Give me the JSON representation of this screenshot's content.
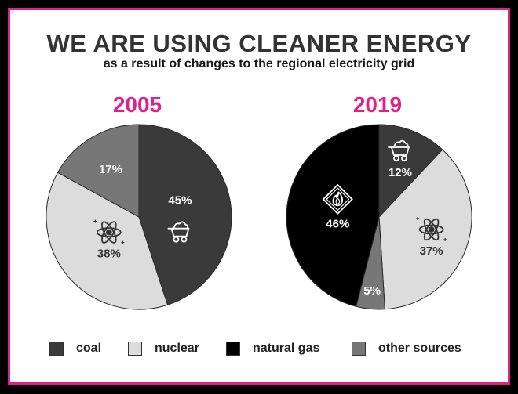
{
  "header": {
    "title": "WE ARE USING CLEANER ENERGY",
    "subtitle": "as a result of changes to the regional electricity grid"
  },
  "colors": {
    "coal": "#3a3a3a",
    "nuclear": "#dcdcdc",
    "natural_gas": "#000000",
    "other_sources": "#777777",
    "accent": "#e0218a"
  },
  "legend": [
    {
      "key": "coal",
      "label": "coal"
    },
    {
      "key": "nuclear",
      "label": "nuclear"
    },
    {
      "key": "natural_gas",
      "label": "natural gas"
    },
    {
      "key": "other_sources",
      "label": "other sources"
    }
  ],
  "chart_data": [
    {
      "type": "pie",
      "title": "2005",
      "slices": [
        {
          "key": "coal",
          "name": "coal",
          "value": 45,
          "label": "45%",
          "icon": "coal-cart-icon"
        },
        {
          "key": "nuclear",
          "name": "nuclear",
          "value": 38,
          "label": "38%",
          "icon": "atom-icon"
        },
        {
          "key": "other_sources",
          "name": "other sources",
          "value": 17,
          "label": "17%"
        }
      ]
    },
    {
      "type": "pie",
      "title": "2019",
      "slices": [
        {
          "key": "coal",
          "name": "coal",
          "value": 12,
          "label": "12%",
          "icon": "coal-cart-icon"
        },
        {
          "key": "nuclear",
          "name": "nuclear",
          "value": 37,
          "label": "37%",
          "icon": "atom-icon"
        },
        {
          "key": "other_sources",
          "name": "other sources",
          "value": 5,
          "label": "5%"
        },
        {
          "key": "natural_gas",
          "name": "natural gas",
          "value": 46,
          "label": "46%",
          "icon": "gas-flame-icon"
        }
      ]
    }
  ]
}
